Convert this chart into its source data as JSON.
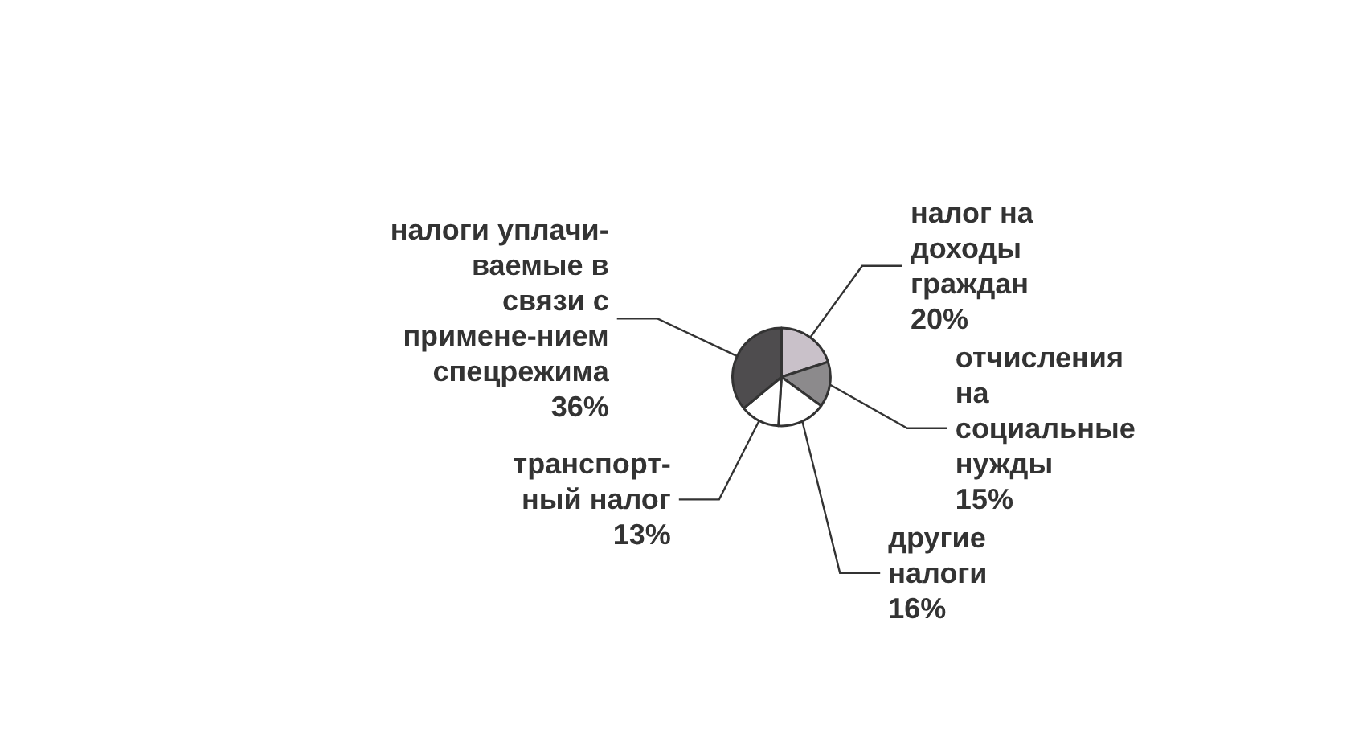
{
  "chart_data": {
    "type": "pie",
    "categories": [
      "налог на\nдоходы\nграждан",
      "отчисления\nна\nсоциальные\nнужды",
      "другие\nналоги",
      "транспорт-\nный налог",
      "налоги уплачи-\nваемые в\nсвязи с\nпримене-нием\nспецрежима"
    ],
    "values": [
      20,
      15,
      16,
      13,
      36
    ],
    "value_labels": [
      "20%",
      "15%",
      "16%",
      "13%",
      "36%"
    ],
    "colors": [
      "#c9c1c9",
      "#8c8a8c",
      "#ffffff",
      "#ffffff",
      "#4e4c4e"
    ],
    "legend": false
  }
}
